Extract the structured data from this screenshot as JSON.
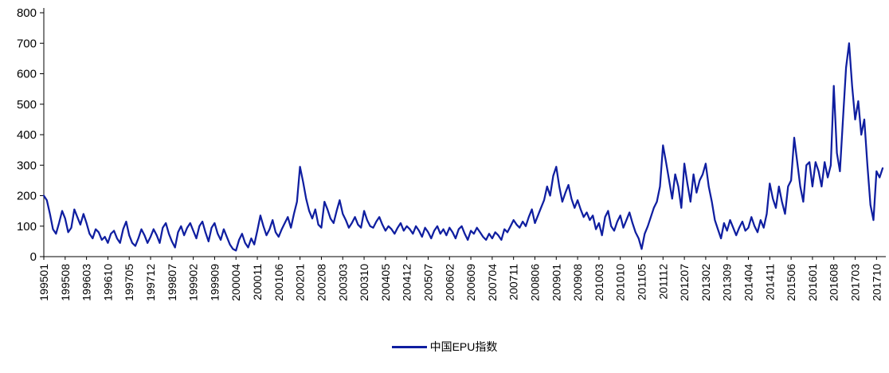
{
  "legend": {
    "label": "中国EPU指数"
  },
  "chart_data": {
    "type": "line",
    "title": "",
    "series_name": "中国EPU指数",
    "line_color": "#0f1ea0",
    "axis_color": "#000000",
    "ylim": [
      0,
      800
    ],
    "y_ticks": [
      0,
      100,
      200,
      300,
      400,
      500,
      600,
      700,
      800
    ],
    "x_label_step": 7,
    "x_tick_labels": [
      "199501",
      "199508",
      "199603",
      "199610",
      "199705",
      "199712",
      "199807",
      "199902",
      "199909",
      "200004",
      "200011",
      "200106",
      "200201",
      "200208",
      "200303",
      "200310",
      "200405",
      "200412",
      "200507",
      "200602",
      "200609",
      "200704",
      "200711",
      "200806",
      "200901",
      "200908",
      "201003",
      "201010",
      "201105",
      "201112",
      "201207",
      "201302",
      "201309",
      "201404",
      "201411",
      "201506",
      "201601",
      "201608",
      "201703",
      "201710"
    ],
    "x_start": "199501",
    "x_frequency": "monthly",
    "values": [
      200,
      185,
      140,
      90,
      75,
      110,
      150,
      125,
      80,
      95,
      155,
      130,
      105,
      140,
      110,
      75,
      60,
      90,
      80,
      55,
      65,
      45,
      75,
      85,
      60,
      45,
      90,
      115,
      70,
      45,
      35,
      60,
      90,
      70,
      45,
      65,
      90,
      70,
      45,
      95,
      110,
      75,
      50,
      30,
      80,
      100,
      70,
      95,
      110,
      85,
      60,
      100,
      115,
      80,
      50,
      95,
      110,
      75,
      55,
      90,
      65,
      40,
      25,
      20,
      55,
      75,
      45,
      30,
      60,
      40,
      85,
      135,
      100,
      70,
      90,
      120,
      80,
      65,
      90,
      110,
      130,
      95,
      140,
      180,
      295,
      245,
      190,
      150,
      125,
      155,
      105,
      95,
      180,
      155,
      125,
      110,
      150,
      185,
      140,
      120,
      95,
      110,
      130,
      105,
      95,
      150,
      120,
      100,
      95,
      115,
      130,
      105,
      85,
      100,
      90,
      75,
      95,
      110,
      85,
      100,
      90,
      75,
      100,
      85,
      65,
      95,
      80,
      60,
      85,
      100,
      75,
      90,
      70,
      95,
      80,
      60,
      90,
      100,
      75,
      55,
      85,
      75,
      95,
      80,
      65,
      55,
      75,
      60,
      80,
      70,
      55,
      90,
      80,
      100,
      120,
      105,
      95,
      115,
      100,
      130,
      155,
      110,
      135,
      160,
      185,
      230,
      200,
      265,
      295,
      230,
      180,
      210,
      235,
      190,
      160,
      185,
      155,
      130,
      145,
      120,
      135,
      90,
      110,
      70,
      130,
      150,
      100,
      85,
      115,
      135,
      95,
      120,
      145,
      110,
      80,
      60,
      25,
      75,
      100,
      130,
      160,
      180,
      230,
      365,
      310,
      250,
      190,
      270,
      230,
      160,
      305,
      240,
      180,
      270,
      210,
      250,
      270,
      305,
      230,
      180,
      120,
      90,
      60,
      110,
      85,
      120,
      95,
      70,
      95,
      115,
      85,
      95,
      130,
      100,
      80,
      120,
      95,
      140,
      240,
      190,
      160,
      230,
      180,
      140,
      230,
      250,
      390,
      310,
      230,
      180,
      300,
      310,
      230,
      310,
      280,
      230,
      310,
      260,
      300,
      560,
      340,
      280,
      450,
      620,
      700,
      560,
      450,
      510,
      400,
      450,
      300,
      170,
      120,
      280,
      260,
      290
    ]
  }
}
